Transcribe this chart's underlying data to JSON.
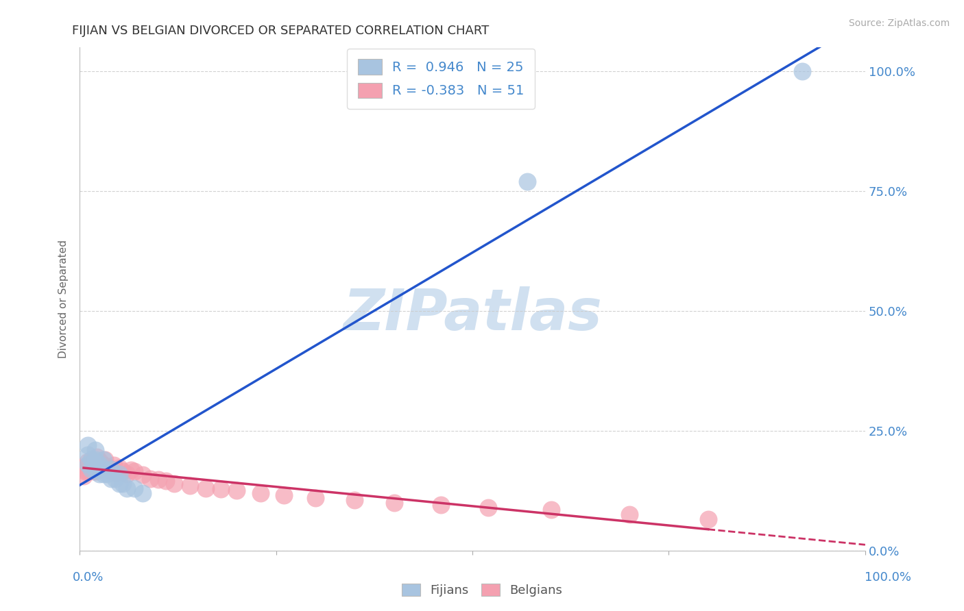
{
  "title": "FIJIAN VS BELGIAN DIVORCED OR SEPARATED CORRELATION CHART",
  "source_text": "Source: ZipAtlas.com",
  "ylabel": "Divorced or Separated",
  "legend_label_bottom": [
    "Fijians",
    "Belgians"
  ],
  "fijian_R": 0.946,
  "fijian_N": 25,
  "belgian_R": -0.383,
  "belgian_N": 51,
  "fijian_color": "#a8c4e0",
  "fijian_line_color": "#2255cc",
  "belgian_color": "#f4a0b0",
  "belgian_line_color": "#cc3366",
  "watermark_color": "#d0e0f0",
  "title_color": "#333333",
  "axis_label_color": "#4488cc",
  "grid_color": "#cccccc",
  "background_color": "#ffffff",
  "fijian_x": [
    0.01,
    0.01,
    0.01,
    0.015,
    0.015,
    0.02,
    0.02,
    0.02,
    0.025,
    0.025,
    0.03,
    0.03,
    0.03,
    0.035,
    0.04,
    0.04,
    0.045,
    0.05,
    0.05,
    0.055,
    0.06,
    0.07,
    0.08,
    0.57,
    0.92
  ],
  "fijian_y": [
    0.18,
    0.2,
    0.22,
    0.17,
    0.19,
    0.17,
    0.19,
    0.21,
    0.16,
    0.18,
    0.16,
    0.17,
    0.19,
    0.16,
    0.15,
    0.17,
    0.15,
    0.14,
    0.16,
    0.14,
    0.13,
    0.13,
    0.12,
    0.77,
    1.0
  ],
  "belgian_x": [
    0.005,
    0.007,
    0.008,
    0.009,
    0.01,
    0.01,
    0.012,
    0.013,
    0.014,
    0.015,
    0.016,
    0.017,
    0.018,
    0.019,
    0.02,
    0.021,
    0.022,
    0.024,
    0.026,
    0.028,
    0.03,
    0.032,
    0.035,
    0.038,
    0.04,
    0.043,
    0.046,
    0.05,
    0.055,
    0.06,
    0.065,
    0.07,
    0.08,
    0.09,
    0.1,
    0.11,
    0.12,
    0.14,
    0.16,
    0.18,
    0.2,
    0.23,
    0.26,
    0.3,
    0.35,
    0.4,
    0.46,
    0.52,
    0.6,
    0.7,
    0.8
  ],
  "belgian_y": [
    0.155,
    0.165,
    0.175,
    0.165,
    0.175,
    0.185,
    0.165,
    0.18,
    0.175,
    0.185,
    0.17,
    0.175,
    0.165,
    0.18,
    0.17,
    0.165,
    0.195,
    0.18,
    0.185,
    0.17,
    0.178,
    0.19,
    0.175,
    0.168,
    0.165,
    0.178,
    0.162,
    0.172,
    0.165,
    0.16,
    0.168,
    0.165,
    0.158,
    0.15,
    0.148,
    0.145,
    0.14,
    0.135,
    0.13,
    0.128,
    0.125,
    0.12,
    0.115,
    0.11,
    0.105,
    0.1,
    0.095,
    0.09,
    0.085,
    0.075,
    0.065
  ],
  "xlim": [
    0.0,
    1.0
  ],
  "ylim": [
    0.0,
    1.05
  ],
  "yticks": [
    0.0,
    0.25,
    0.5,
    0.75,
    1.0
  ],
  "ytick_labels_right": [
    "0.0%",
    "25.0%",
    "50.0%",
    "75.0%",
    "100.0%"
  ],
  "xticks": [
    0.0,
    0.25,
    0.5,
    0.75,
    1.0
  ]
}
